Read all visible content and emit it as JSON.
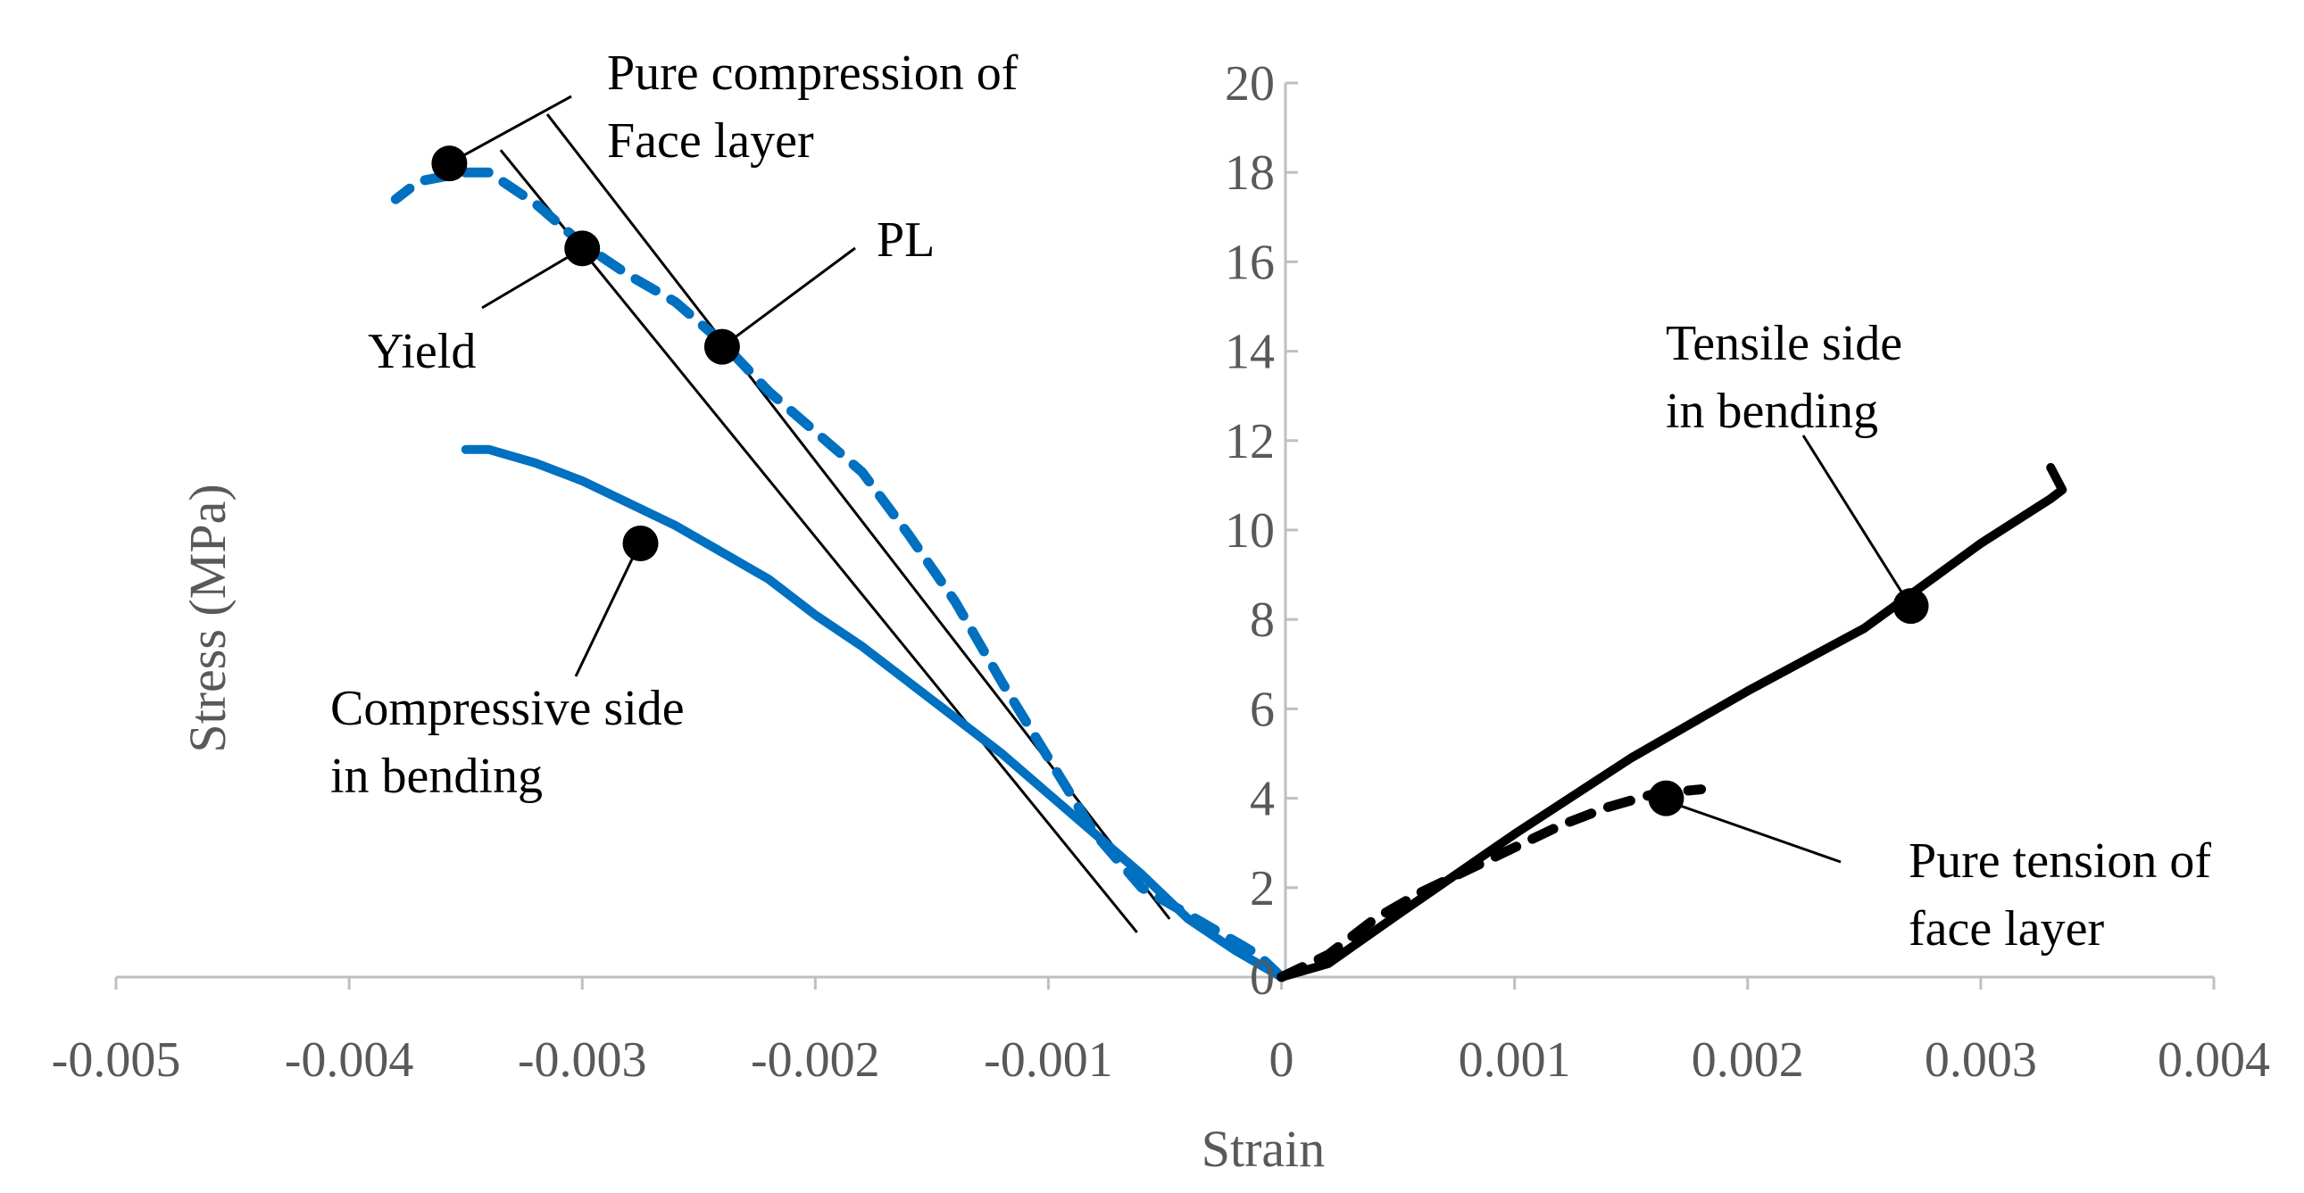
{
  "chart_data": {
    "type": "line",
    "xlabel": "Strain",
    "ylabel": "Stress (MPa)",
    "xlim": [
      -0.005,
      0.004
    ],
    "ylim": [
      0,
      20
    ],
    "x_ticks": [
      -0.005,
      -0.004,
      -0.003,
      -0.002,
      -0.001,
      0,
      0.001,
      0.002,
      0.003,
      0.004
    ],
    "x_tick_labels": [
      "-0.005",
      "-0.004",
      "-0.003",
      "-0.002",
      "-0.001",
      "0",
      "0.001",
      "0.002",
      "0.003",
      "0.004"
    ],
    "y_ticks": [
      0,
      2,
      4,
      6,
      8,
      10,
      12,
      14,
      16,
      18,
      20
    ],
    "y_tick_labels": [
      "0",
      "2",
      "4",
      "6",
      "8",
      "10",
      "12",
      "14",
      "16",
      "18",
      "20"
    ],
    "grid": false,
    "colors": {
      "blue": "#0070C0",
      "black": "#000000",
      "axis": "#BFBFBF",
      "text": "#595959"
    },
    "series": [
      {
        "label": "Compressive side in bending",
        "color": "#0070C0",
        "style": "solid",
        "x": [
          0,
          -0.0001,
          -0.0002,
          -0.0004,
          -0.0006,
          -0.0008,
          -0.001,
          -0.0012,
          -0.0014,
          -0.0016,
          -0.0018,
          -0.002,
          -0.0022,
          -0.0024,
          -0.0026,
          -0.0028,
          -0.003,
          -0.0032,
          -0.0034,
          -0.0035
        ],
        "y": [
          0,
          0.3,
          0.6,
          1.3,
          2.3,
          3.2,
          4.1,
          5.0,
          5.8,
          6.6,
          7.4,
          8.1,
          8.9,
          9.5,
          10.1,
          10.6,
          11.1,
          11.5,
          11.8,
          11.8
        ]
      },
      {
        "label": "Pure compression of Face layer",
        "color": "#0070C0",
        "style": "dashed",
        "x": [
          0,
          -0.0001,
          -0.0002,
          -0.0004,
          -0.0006,
          -0.0008,
          -0.001,
          -0.0012,
          -0.0014,
          -0.0016,
          -0.0018,
          -0.002,
          -0.0022,
          -0.0024,
          -0.0026,
          -0.0028,
          -0.003,
          -0.0032,
          -0.0034,
          -0.0035,
          -0.0036,
          -0.0037,
          -0.0038
        ],
        "y": [
          0,
          0.5,
          0.8,
          1.4,
          2.0,
          3.2,
          4.9,
          6.6,
          8.4,
          9.9,
          11.3,
          12.2,
          13.1,
          14.2,
          15.1,
          15.7,
          16.4,
          17.3,
          18.0,
          18.0,
          17.9,
          17.8,
          17.4
        ]
      },
      {
        "label": "Tensile side in bending",
        "color": "#000000",
        "style": "solid",
        "x": [
          0,
          0.0002,
          0.0005,
          0.001,
          0.0015,
          0.002,
          0.0025,
          0.003,
          0.0033,
          0.00335,
          0.0033
        ],
        "y": [
          0,
          0.3,
          1.4,
          3.2,
          4.9,
          6.4,
          7.8,
          9.7,
          10.7,
          10.9,
          11.4
        ]
      },
      {
        "label": "Pure tension of face layer",
        "color": "#000000",
        "style": "dashed",
        "x": [
          0,
          0.0002,
          0.0004,
          0.0006,
          0.0008,
          0.001,
          0.0012,
          0.0014,
          0.0016,
          0.0018
        ],
        "y": [
          0,
          0.5,
          1.3,
          1.9,
          2.4,
          2.9,
          3.4,
          3.8,
          4.1,
          4.2
        ]
      }
    ],
    "guide_lines": [
      {
        "x": [
          -0.00062,
          -0.00335
        ],
        "y": [
          1.0,
          18.5
        ]
      },
      {
        "x": [
          -0.00048,
          -0.00315
        ],
        "y": [
          1.3,
          19.3
        ]
      }
    ],
    "points": [
      {
        "x": -0.00357,
        "y": 18.2
      },
      {
        "x": -0.003,
        "y": 16.3
      },
      {
        "x": -0.0024,
        "y": 14.1
      },
      {
        "x": -0.00275,
        "y": 9.7
      },
      {
        "x": 0.0027,
        "y": 8.3
      },
      {
        "x": 0.00165,
        "y": 4.0
      }
    ],
    "annotations": [
      {
        "lines": [
          "Pure compression of",
          "Face layer"
        ],
        "point": 0
      },
      {
        "lines": [
          "Yield"
        ],
        "point": 1
      },
      {
        "lines": [
          "PL"
        ],
        "point": 2
      },
      {
        "lines": [
          "Compressive side",
          " in bending"
        ],
        "point": 3
      },
      {
        "lines": [
          "Tensile side",
          "in bending"
        ],
        "point": 4
      },
      {
        "lines": [
          "Pure tension of",
          "face layer"
        ],
        "point": 5
      }
    ]
  }
}
